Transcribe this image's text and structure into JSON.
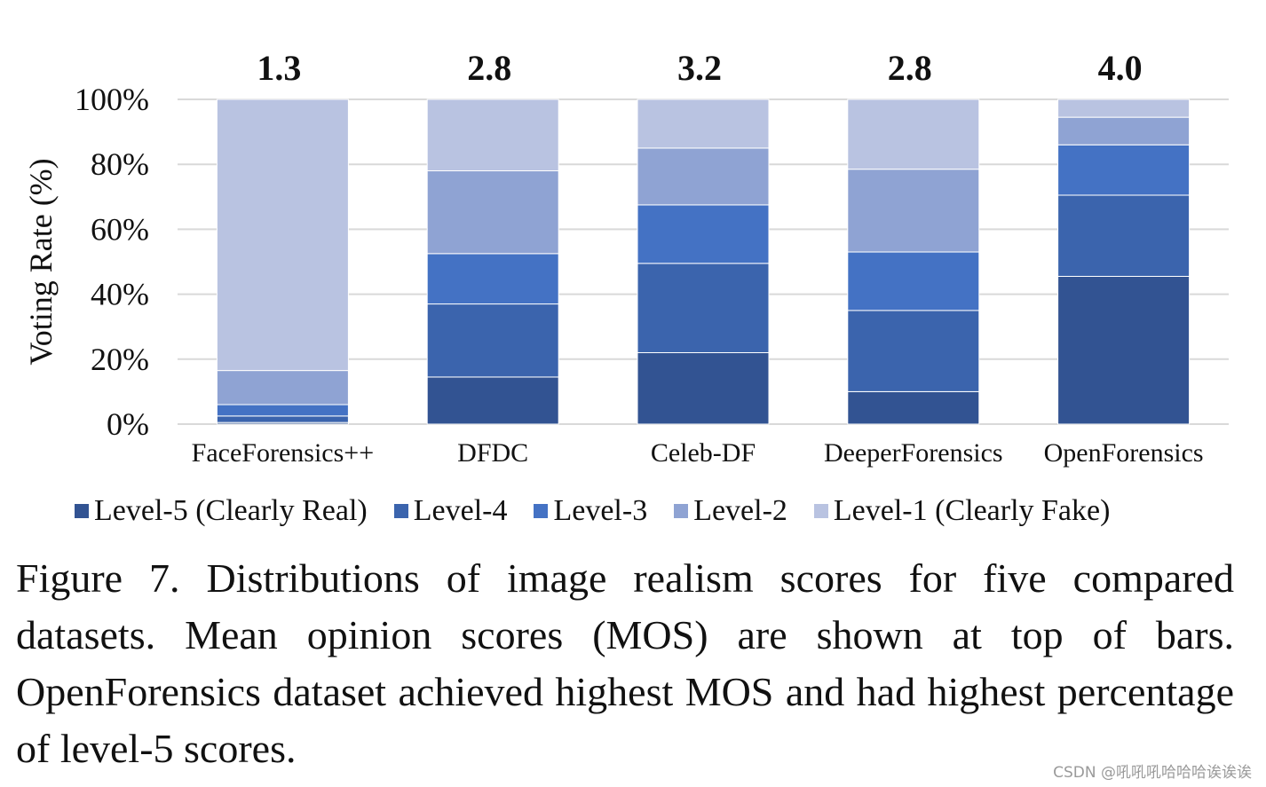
{
  "chart_data": {
    "type": "bar",
    "stacked": true,
    "ylabel": "Voting Rate (%)",
    "yticks": [
      "0%",
      "20%",
      "40%",
      "60%",
      "80%",
      "100%"
    ],
    "ylim": [
      0,
      100
    ],
    "grid": true,
    "legend_position": "bottom",
    "categories": [
      "FaceForensics++",
      "DFDC",
      "Celeb-DF",
      "DeeperForensics",
      "OpenForensics"
    ],
    "mos_labels": [
      "1.3",
      "2.8",
      "3.2",
      "2.8",
      "4.0"
    ],
    "series": [
      {
        "name": "Level-5 (Clearly Real)",
        "color": "#325392",
        "values": [
          0.5,
          14.5,
          22,
          10,
          45.5
        ]
      },
      {
        "name": "Level-4",
        "color": "#3b64ad",
        "values": [
          2,
          22.5,
          27.5,
          25,
          25
        ]
      },
      {
        "name": "Level-3",
        "color": "#4472c4",
        "values": [
          3.5,
          15.5,
          18,
          18,
          15.5
        ]
      },
      {
        "name": "Level-2",
        "color": "#8fa3d3",
        "values": [
          10.5,
          25.5,
          17.5,
          25.5,
          8.5
        ]
      },
      {
        "name": "Level-1 (Clearly Fake)",
        "color": "#b9c3e1",
        "values": [
          83.5,
          22,
          15,
          21.5,
          5.5
        ]
      }
    ]
  },
  "caption": "Figure 7. Distributions of image realism scores for five compared datasets.  Mean opinion scores (MOS) are shown at top of bars. OpenForensics dataset achieved highest MOS and had highest percentage of level-5 scores.",
  "watermark": "CSDN @吼吼吼哈哈哈诶诶诶"
}
